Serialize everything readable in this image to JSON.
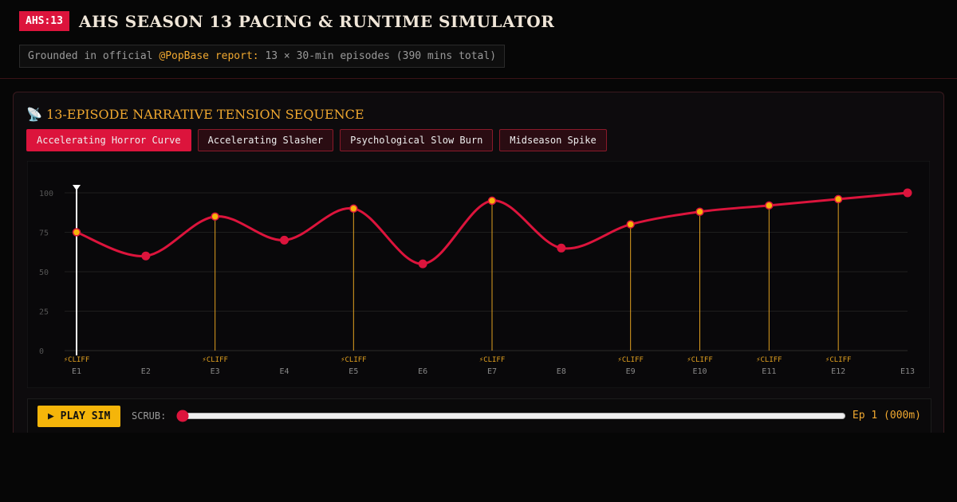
{
  "header": {
    "badge": "AHS:13",
    "title": "AHS SEASON 13 PACING & RUNTIME SIMULATOR",
    "subtitle_prefix": "Grounded in official",
    "subtitle_highlight": "@PopBase report:",
    "subtitle_rest": "13 × 30-min episodes (390 mins total)"
  },
  "panel": {
    "icon": "📡",
    "title": "13-EPISODE NARRATIVE TENSION SEQUENCE",
    "tabs": [
      "Accelerating Horror Curve",
      "Accelerating Slasher",
      "Psychological Slow Burn",
      "Midseason Spike"
    ],
    "active_tab": 0
  },
  "chart_data": {
    "type": "line",
    "categories": [
      "E1",
      "E2",
      "E3",
      "E4",
      "E5",
      "E6",
      "E7",
      "E8",
      "E9",
      "E10",
      "E11",
      "E12",
      "E13"
    ],
    "series": [
      {
        "name": "Accelerating Horror Curve",
        "color": "#dc143c",
        "values": [
          75,
          60,
          85,
          70,
          90,
          55,
          95,
          65,
          80,
          88,
          92,
          96,
          100
        ]
      }
    ],
    "cliffs": [
      true,
      false,
      true,
      false,
      true,
      false,
      true,
      false,
      true,
      true,
      true,
      true,
      false
    ],
    "cliff_label": "⚡CLIFF",
    "cliff_color": "#e0a020",
    "ylim": [
      0,
      100
    ],
    "yticks": [
      0,
      25,
      50,
      75,
      100
    ],
    "grid": true
  },
  "controls": {
    "play": "▶ PLAY SIM",
    "scrub_label": "SCRUB:",
    "status": "Ep 1 (000m)"
  }
}
